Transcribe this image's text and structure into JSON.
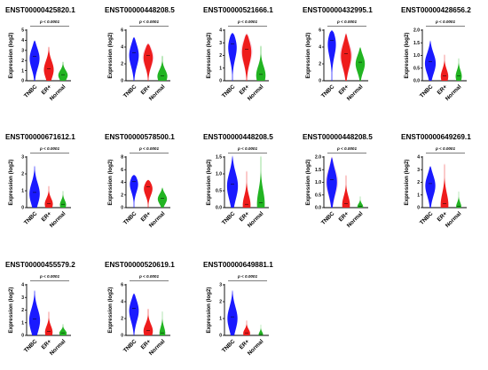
{
  "colors": {
    "TNBC": "#1a1aff",
    "ER+": "#ee1c1c",
    "Normal": "#22b422",
    "ER+_halo": "#f7b6d2"
  },
  "chart_data": [
    {
      "type": "violin",
      "title": "ENST00000425820.1",
      "pvalue": "p < 0.0001",
      "ylabel": "Expression (log2)",
      "categories": [
        "TNBC",
        "ER+",
        "Normal"
      ],
      "ylim": [
        0,
        5
      ],
      "yticks": [
        "0",
        "1",
        "2",
        "3",
        "4",
        "5"
      ],
      "series": [
        {
          "name": "TNBC",
          "max": 4.0,
          "mode": 2.4,
          "width": 1.0
        },
        {
          "name": "ER+",
          "max": 3.4,
          "mode": 1.2,
          "width": 0.85
        },
        {
          "name": "Normal",
          "max": 1.9,
          "mode": 0.6,
          "width": 0.8
        }
      ]
    },
    {
      "type": "violin",
      "title": "ENST00000448208.5",
      "pvalue": "p < 0.0001",
      "ylabel": "Expression (log2)",
      "categories": [
        "TNBC",
        "ER+",
        "Normal"
      ],
      "ylim": [
        0,
        6
      ],
      "yticks": [
        "0",
        "2",
        "4",
        "6"
      ],
      "series": [
        {
          "name": "TNBC",
          "max": 5.2,
          "mode": 3.3,
          "width": 1.0
        },
        {
          "name": "ER+",
          "max": 4.4,
          "mode": 3.0,
          "width": 1.0,
          "halo": true
        },
        {
          "name": "Normal",
          "max": 3.0,
          "mode": 0.6,
          "width": 0.8
        }
      ]
    },
    {
      "type": "violin",
      "title": "ENST00000521666.1",
      "pvalue": "p < 0.0001",
      "ylabel": "Expression (log2)",
      "categories": [
        "TNBC",
        "ER+",
        "Normal"
      ],
      "ylim": [
        0,
        4
      ],
      "yticks": [
        "0",
        "1",
        "2",
        "3",
        "4"
      ],
      "series": [
        {
          "name": "TNBC",
          "max": 3.8,
          "mode": 2.9,
          "width": 1.0
        },
        {
          "name": "ER+",
          "max": 3.7,
          "mode": 2.5,
          "width": 1.0,
          "halo": true
        },
        {
          "name": "Normal",
          "max": 2.8,
          "mode": 0.5,
          "width": 0.75
        }
      ]
    },
    {
      "type": "violin",
      "title": "ENST00000432995.1",
      "pvalue": "p < 0.0001",
      "ylabel": "Expression (log2)",
      "categories": [
        "TNBC",
        "ER+",
        "Normal"
      ],
      "ylim": [
        0,
        6
      ],
      "yticks": [
        "0",
        "2",
        "4",
        "6"
      ],
      "series": [
        {
          "name": "TNBC",
          "max": 6.0,
          "mode": 4.8,
          "width": 1.0
        },
        {
          "name": "ER+",
          "max": 5.6,
          "mode": 3.2,
          "width": 1.0,
          "halo": true
        },
        {
          "name": "Normal",
          "max": 4.0,
          "mode": 2.2,
          "width": 0.9
        }
      ]
    },
    {
      "type": "violin",
      "title": "ENST00000428656.2",
      "pvalue": "p < 0.0001",
      "ylabel": "Expression (log2)",
      "categories": [
        "TNBC",
        "ER+",
        "Normal"
      ],
      "ylim": [
        0,
        2.0
      ],
      "yticks": [
        "0.0",
        "0.5",
        "1.0",
        "1.5",
        "2.0"
      ],
      "series": [
        {
          "name": "TNBC",
          "max": 1.6,
          "mode": 0.75,
          "width": 1.0
        },
        {
          "name": "ER+",
          "max": 1.05,
          "mode": 0.2,
          "width": 0.6
        },
        {
          "name": "Normal",
          "max": 0.9,
          "mode": 0.2,
          "width": 0.5
        }
      ]
    },
    {
      "type": "violin",
      "title": "ENST00000671612.1",
      "pvalue": "p < 0.0001",
      "ylabel": "Expression (log2)",
      "categories": [
        "TNBC",
        "ER+",
        "Normal"
      ],
      "ylim": [
        0,
        3
      ],
      "yticks": [
        "0",
        "1",
        "2",
        "3"
      ],
      "series": [
        {
          "name": "TNBC",
          "max": 2.5,
          "mode": 0.9,
          "width": 0.9
        },
        {
          "name": "ER+",
          "max": 1.3,
          "mode": 0.25,
          "width": 0.65
        },
        {
          "name": "Normal",
          "max": 1.0,
          "mode": 0.2,
          "width": 0.5
        }
      ]
    },
    {
      "type": "violin",
      "title": "ENST00000578500.1",
      "pvalue": "p < 0.0001",
      "ylabel": "Expression (log2)",
      "categories": [
        "TNBC",
        "ER+",
        "Normal"
      ],
      "ylim": [
        0,
        8
      ],
      "yticks": [
        "0",
        "2",
        "4",
        "6",
        "8"
      ],
      "series": [
        {
          "name": "TNBC",
          "max": 5.2,
          "mode": 4.1,
          "width": 1.0
        },
        {
          "name": "ER+",
          "max": 4.4,
          "mode": 3.3,
          "width": 1.0
        },
        {
          "name": "Normal",
          "max": 3.2,
          "mode": 1.5,
          "width": 0.85
        }
      ]
    },
    {
      "type": "violin",
      "title": "ENST00000448208.5",
      "pvalue": "p < 0.0001",
      "ylabel": "Expression (log2)",
      "categories": [
        "TNBC",
        "ER+",
        "Normal"
      ],
      "ylim": [
        0,
        1.5
      ],
      "yticks": [
        "0.0",
        "0.5",
        "1.0",
        "1.5"
      ],
      "series": [
        {
          "name": "TNBC",
          "max": 1.55,
          "mode": 0.7,
          "width": 1.0
        },
        {
          "name": "ER+",
          "max": 1.1,
          "mode": 0.1,
          "width": 0.6
        },
        {
          "name": "Normal",
          "max": 1.55,
          "mode": 0.15,
          "width": 0.6
        }
      ]
    },
    {
      "type": "violin",
      "title": "ENST00000448208.5",
      "pvalue": "p < 0.0001",
      "ylabel": "Expression (log2)",
      "categories": [
        "TNBC",
        "ER+",
        "Normal"
      ],
      "ylim": [
        0,
        2.0
      ],
      "yticks": [
        "0.0",
        "0.5",
        "1.0",
        "1.5",
        "2.0"
      ],
      "series": [
        {
          "name": "TNBC",
          "max": 2.0,
          "mode": 1.1,
          "width": 1.0,
          "halo": true
        },
        {
          "name": "ER+",
          "max": 1.3,
          "mode": 0.15,
          "width": 0.6
        },
        {
          "name": "Normal",
          "max": 0.45,
          "mode": 0.05,
          "width": 0.45
        }
      ]
    },
    {
      "type": "violin",
      "title": "ENST00000649269.1",
      "pvalue": "p < 0.0001",
      "ylabel": "Expression (log2)",
      "categories": [
        "TNBC",
        "ER+",
        "Normal"
      ],
      "ylim": [
        0,
        4
      ],
      "yticks": [
        "0",
        "1",
        "2",
        "3",
        "4"
      ],
      "series": [
        {
          "name": "TNBC",
          "max": 3.3,
          "mode": 1.9,
          "width": 1.0
        },
        {
          "name": "ER+",
          "max": 3.5,
          "mode": 0.3,
          "width": 0.6
        },
        {
          "name": "Normal",
          "max": 1.3,
          "mode": 0.1,
          "width": 0.4
        }
      ]
    },
    {
      "type": "violin",
      "title": "ENST00000455579.2",
      "pvalue": "p < 0.0001",
      "ylabel": "Expression (log2)",
      "categories": [
        "TNBC",
        "ER+",
        "Normal"
      ],
      "ylim": [
        0,
        4
      ],
      "yticks": [
        "0",
        "1",
        "2",
        "3",
        "4"
      ],
      "series": [
        {
          "name": "TNBC",
          "max": 3.6,
          "mode": 1.3,
          "width": 0.95
        },
        {
          "name": "ER+",
          "max": 1.9,
          "mode": 0.3,
          "width": 0.6
        },
        {
          "name": "Normal",
          "max": 0.9,
          "mode": 0.2,
          "width": 0.6
        }
      ]
    },
    {
      "type": "violin",
      "title": "ENST00000520619.1",
      "pvalue": "p < 0.0001",
      "ylabel": "Expression (log2)",
      "categories": [
        "TNBC",
        "ER+",
        "Normal"
      ],
      "ylim": [
        0,
        6
      ],
      "yticks": [
        "0",
        "2",
        "4",
        "6"
      ],
      "series": [
        {
          "name": "TNBC",
          "max": 5.0,
          "mode": 3.2,
          "width": 1.0
        },
        {
          "name": "ER+",
          "max": 3.2,
          "mode": 0.6,
          "width": 0.75
        },
        {
          "name": "Normal",
          "max": 2.9,
          "mode": 0.3,
          "width": 0.45
        }
      ]
    },
    {
      "type": "violin",
      "title": "ENST00000649881.1",
      "pvalue": "p < 0.0001",
      "ylabel": "Expression (log2)",
      "categories": [
        "TNBC",
        "ER+",
        "Normal"
      ],
      "ylim": [
        0,
        3
      ],
      "yticks": [
        "0",
        "1",
        "2",
        "3"
      ],
      "series": [
        {
          "name": "TNBC",
          "max": 2.7,
          "mode": 1.1,
          "width": 0.9
        },
        {
          "name": "ER+",
          "max": 0.9,
          "mode": 0.15,
          "width": 0.55
        },
        {
          "name": "Normal",
          "max": 0.65,
          "mode": 0.05,
          "width": 0.35
        }
      ]
    }
  ]
}
